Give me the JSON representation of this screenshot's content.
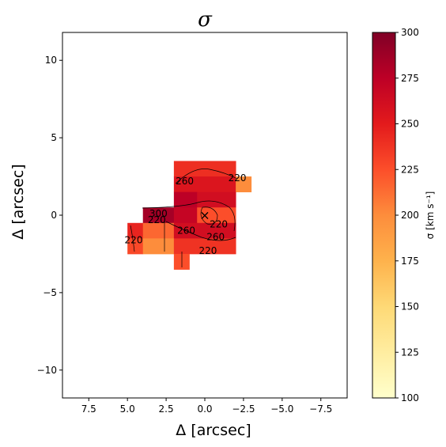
{
  "chart_data": {
    "type": "heatmap",
    "title": "σ",
    "xlabel": "Δ [arcsec]",
    "ylabel": "Δ [arcsec]",
    "xlim": [
      9.2,
      -9.2
    ],
    "ylim": [
      -11.8,
      11.8
    ],
    "x_ticks": [
      7.5,
      5.0,
      2.5,
      0.0,
      -2.5,
      -5.0,
      -7.5
    ],
    "x_tick_labels": [
      "7.5",
      "5.0",
      "2.5",
      "0.0",
      "−2.5",
      "−5.0",
      "−7.5"
    ],
    "y_ticks": [
      10,
      5,
      0,
      -5,
      -10
    ],
    "y_tick_labels": [
      "10",
      "5",
      "0",
      "−5",
      "−10"
    ],
    "colormap": "YlOrRd",
    "colormap_stops": [
      "#ffffcc",
      "#ffeda0",
      "#fed976",
      "#feb24c",
      "#fd8d3c",
      "#fc4e2a",
      "#e31a1c",
      "#bd0026",
      "#800026"
    ],
    "colorbar": {
      "label": "σ [km s⁻¹]",
      "range": [
        100,
        300
      ],
      "ticks": [
        300,
        275,
        250,
        225,
        200,
        175,
        150,
        125,
        100
      ],
      "tick_labels": [
        "300",
        "275",
        "250",
        "225",
        "200",
        "175",
        "150",
        "125",
        "100"
      ]
    },
    "cells": [
      {
        "x0": 2,
        "x1": -2,
        "y0": 2.5,
        "y1": 3.5,
        "value": 240
      },
      {
        "x0": 2,
        "x1": -2,
        "y0": 1.5,
        "y1": 2.5,
        "value": 255
      },
      {
        "x0": -2,
        "x1": -3,
        "y0": 1.5,
        "y1": 2.5,
        "value": 200
      },
      {
        "x0": 2,
        "x1": 0.5,
        "y0": 0.5,
        "y1": 1.5,
        "value": 275
      },
      {
        "x0": 0.5,
        "x1": -2,
        "y0": 0.5,
        "y1": 1.5,
        "value": 262
      },
      {
        "x0": 4,
        "x1": 2,
        "y0": -0.5,
        "y1": 0.5,
        "value": 285
      },
      {
        "x0": 2,
        "x1": 0.5,
        "y0": -0.5,
        "y1": 0.5,
        "value": 270
      },
      {
        "x0": 0.5,
        "x1": -2,
        "y0": -0.5,
        "y1": 0.5,
        "value": 225
      },
      {
        "x0": 5,
        "x1": 4,
        "y0": -1.5,
        "y1": -0.5,
        "value": 245
      },
      {
        "x0": 4,
        "x1": 2,
        "y0": -1.5,
        "y1": -0.5,
        "value": 215
      },
      {
        "x0": 2,
        "x1": -2,
        "y0": -1.5,
        "y1": -0.5,
        "value": 262
      },
      {
        "x0": 5,
        "x1": 4,
        "y0": -2.5,
        "y1": -1.5,
        "value": 228
      },
      {
        "x0": 4,
        "x1": 2,
        "y0": -2.5,
        "y1": -1.5,
        "value": 200
      },
      {
        "x0": 2,
        "x1": -2,
        "y0": -2.5,
        "y1": -1.5,
        "value": 238
      },
      {
        "x0": 2,
        "x1": 1,
        "y0": -3.5,
        "y1": -2.5,
        "value": 225
      }
    ],
    "contour_labels": [
      {
        "text": "260",
        "x": 1.3,
        "y": 2.2
      },
      {
        "text": "220",
        "x": -2.1,
        "y": 2.4
      },
      {
        "text": "300",
        "x": 3.0,
        "y": 0.1
      },
      {
        "text": "220",
        "x": 3.1,
        "y": -0.3
      },
      {
        "text": "220",
        "x": -0.9,
        "y": -0.6
      },
      {
        "text": "260",
        "x": 1.2,
        "y": -1.0
      },
      {
        "text": "260",
        "x": -0.7,
        "y": -1.4
      },
      {
        "text": "220",
        "x": 4.6,
        "y": -1.6
      },
      {
        "text": "220",
        "x": -0.2,
        "y": -2.3
      }
    ],
    "marker": {
      "symbol": "×",
      "x": 0.0,
      "y": 0.0
    }
  }
}
